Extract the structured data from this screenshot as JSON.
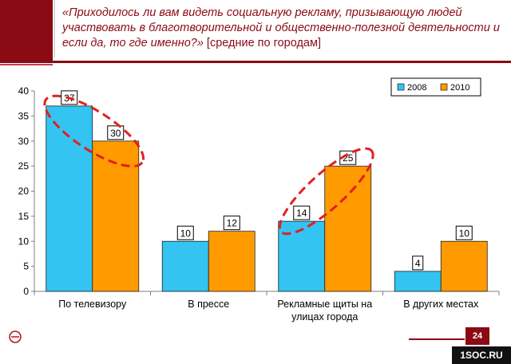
{
  "slide": {
    "title_question": "«Приходилось ли вам видеть социальную рекламу, призывающую людей участвовать в благотворительной и общественно-полезной деятельности и если да, то где именно?»",
    "title_suffix": "[средние по городам]",
    "page_number": "24",
    "watermark": "1SOC.RU"
  },
  "chart_data": {
    "type": "bar",
    "categories": [
      "По телевизору",
      "В прессе",
      "Рекламные щиты на улицах города",
      "В других местах"
    ],
    "category_lines": [
      [
        "По телевизору"
      ],
      [
        "В прессе"
      ],
      [
        "Рекламные щиты на",
        "улицах города"
      ],
      [
        "В других местах"
      ]
    ],
    "series": [
      {
        "name": "2008",
        "values": [
          37,
          10,
          14,
          4
        ],
        "color": "#33c4f2"
      },
      {
        "name": "2010",
        "values": [
          30,
          12,
          25,
          10
        ],
        "color": "#ff9a00"
      }
    ],
    "ylim": [
      0,
      40
    ],
    "yticks": [
      0,
      5,
      10,
      15,
      20,
      25,
      30,
      35,
      40
    ],
    "grid": false,
    "legend_position": "top-right",
    "annotations": [
      {
        "shape": "dashed-ellipse",
        "color": "#e02020",
        "category": "По телевизору"
      },
      {
        "shape": "dashed-ellipse",
        "color": "#e02020",
        "category": "Рекламные щиты на улицах города"
      }
    ]
  }
}
